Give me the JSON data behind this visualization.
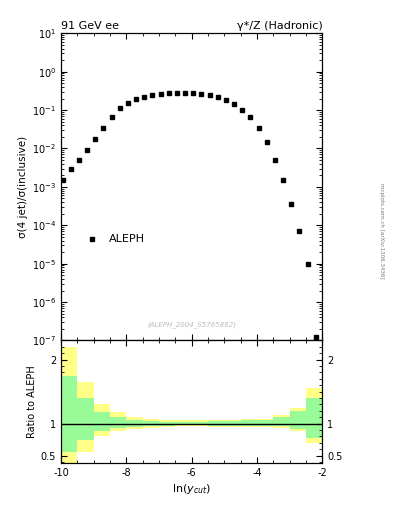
{
  "title_left": "91 GeV ee",
  "title_right": "γ*/Z (Hadronic)",
  "ylabel_main": "σ(4 jet)/σ(inclusive)",
  "ylabel_ratio": "Ratio to ALEPH",
  "xlabel": "ln($y_{cut}$)",
  "legend_label": "ALEPH",
  "watermark": "(ALEPH_2004_S5765862)",
  "side_text": "mcplots.cern.ch [arXiv:1306.3436]",
  "xlim": [
    -10,
    -2
  ],
  "ylim_main_lo": 1e-07,
  "ylim_main_hi": 10,
  "ylim_ratio": [
    0.38,
    2.3
  ],
  "data_x": [
    -9.95,
    -9.7,
    -9.45,
    -9.2,
    -8.95,
    -8.7,
    -8.45,
    -8.2,
    -7.95,
    -7.7,
    -7.45,
    -7.2,
    -6.95,
    -6.7,
    -6.45,
    -6.2,
    -5.95,
    -5.7,
    -5.45,
    -5.2,
    -4.95,
    -4.7,
    -4.45,
    -4.2,
    -3.95,
    -3.7,
    -3.45,
    -3.2,
    -2.95,
    -2.7,
    -2.45,
    -2.2
  ],
  "data_y": [
    0.0015,
    0.003,
    0.005,
    0.009,
    0.018,
    0.035,
    0.065,
    0.11,
    0.15,
    0.19,
    0.22,
    0.25,
    0.27,
    0.28,
    0.285,
    0.285,
    0.28,
    0.27,
    0.25,
    0.22,
    0.18,
    0.14,
    0.1,
    0.065,
    0.035,
    0.015,
    0.005,
    0.0015,
    0.00035,
    7e-05,
    1e-05,
    1.2e-07
  ],
  "ratio_x_edges": [
    -10.0,
    -9.5,
    -9.0,
    -8.5,
    -8.0,
    -7.5,
    -7.0,
    -6.5,
    -6.0,
    -5.5,
    -5.0,
    -4.5,
    -4.0,
    -3.5,
    -3.0,
    -2.5,
    -2.0
  ],
  "ratio_yellow_lo": [
    0.15,
    0.55,
    0.8,
    0.88,
    0.92,
    0.94,
    0.95,
    0.96,
    0.96,
    0.95,
    0.95,
    0.95,
    0.95,
    0.93,
    0.88,
    0.7,
    0.45
  ],
  "ratio_yellow_hi": [
    2.2,
    1.65,
    1.3,
    1.18,
    1.1,
    1.07,
    1.06,
    1.05,
    1.05,
    1.06,
    1.06,
    1.07,
    1.08,
    1.14,
    1.25,
    1.55,
    2.2
  ],
  "ratio_green_lo": [
    0.55,
    0.75,
    0.88,
    0.93,
    0.95,
    0.97,
    0.97,
    0.975,
    0.975,
    0.97,
    0.97,
    0.97,
    0.97,
    0.96,
    0.92,
    0.78,
    0.6
  ],
  "ratio_green_hi": [
    1.75,
    1.4,
    1.18,
    1.1,
    1.06,
    1.04,
    1.03,
    1.03,
    1.03,
    1.04,
    1.04,
    1.05,
    1.06,
    1.1,
    1.2,
    1.4,
    1.85
  ],
  "marker_color": "#000000",
  "marker_size": 3.5,
  "green_color": "#98FB98",
  "yellow_color": "#FFFF88",
  "ratio_line_color": "black",
  "bg_color": "white"
}
